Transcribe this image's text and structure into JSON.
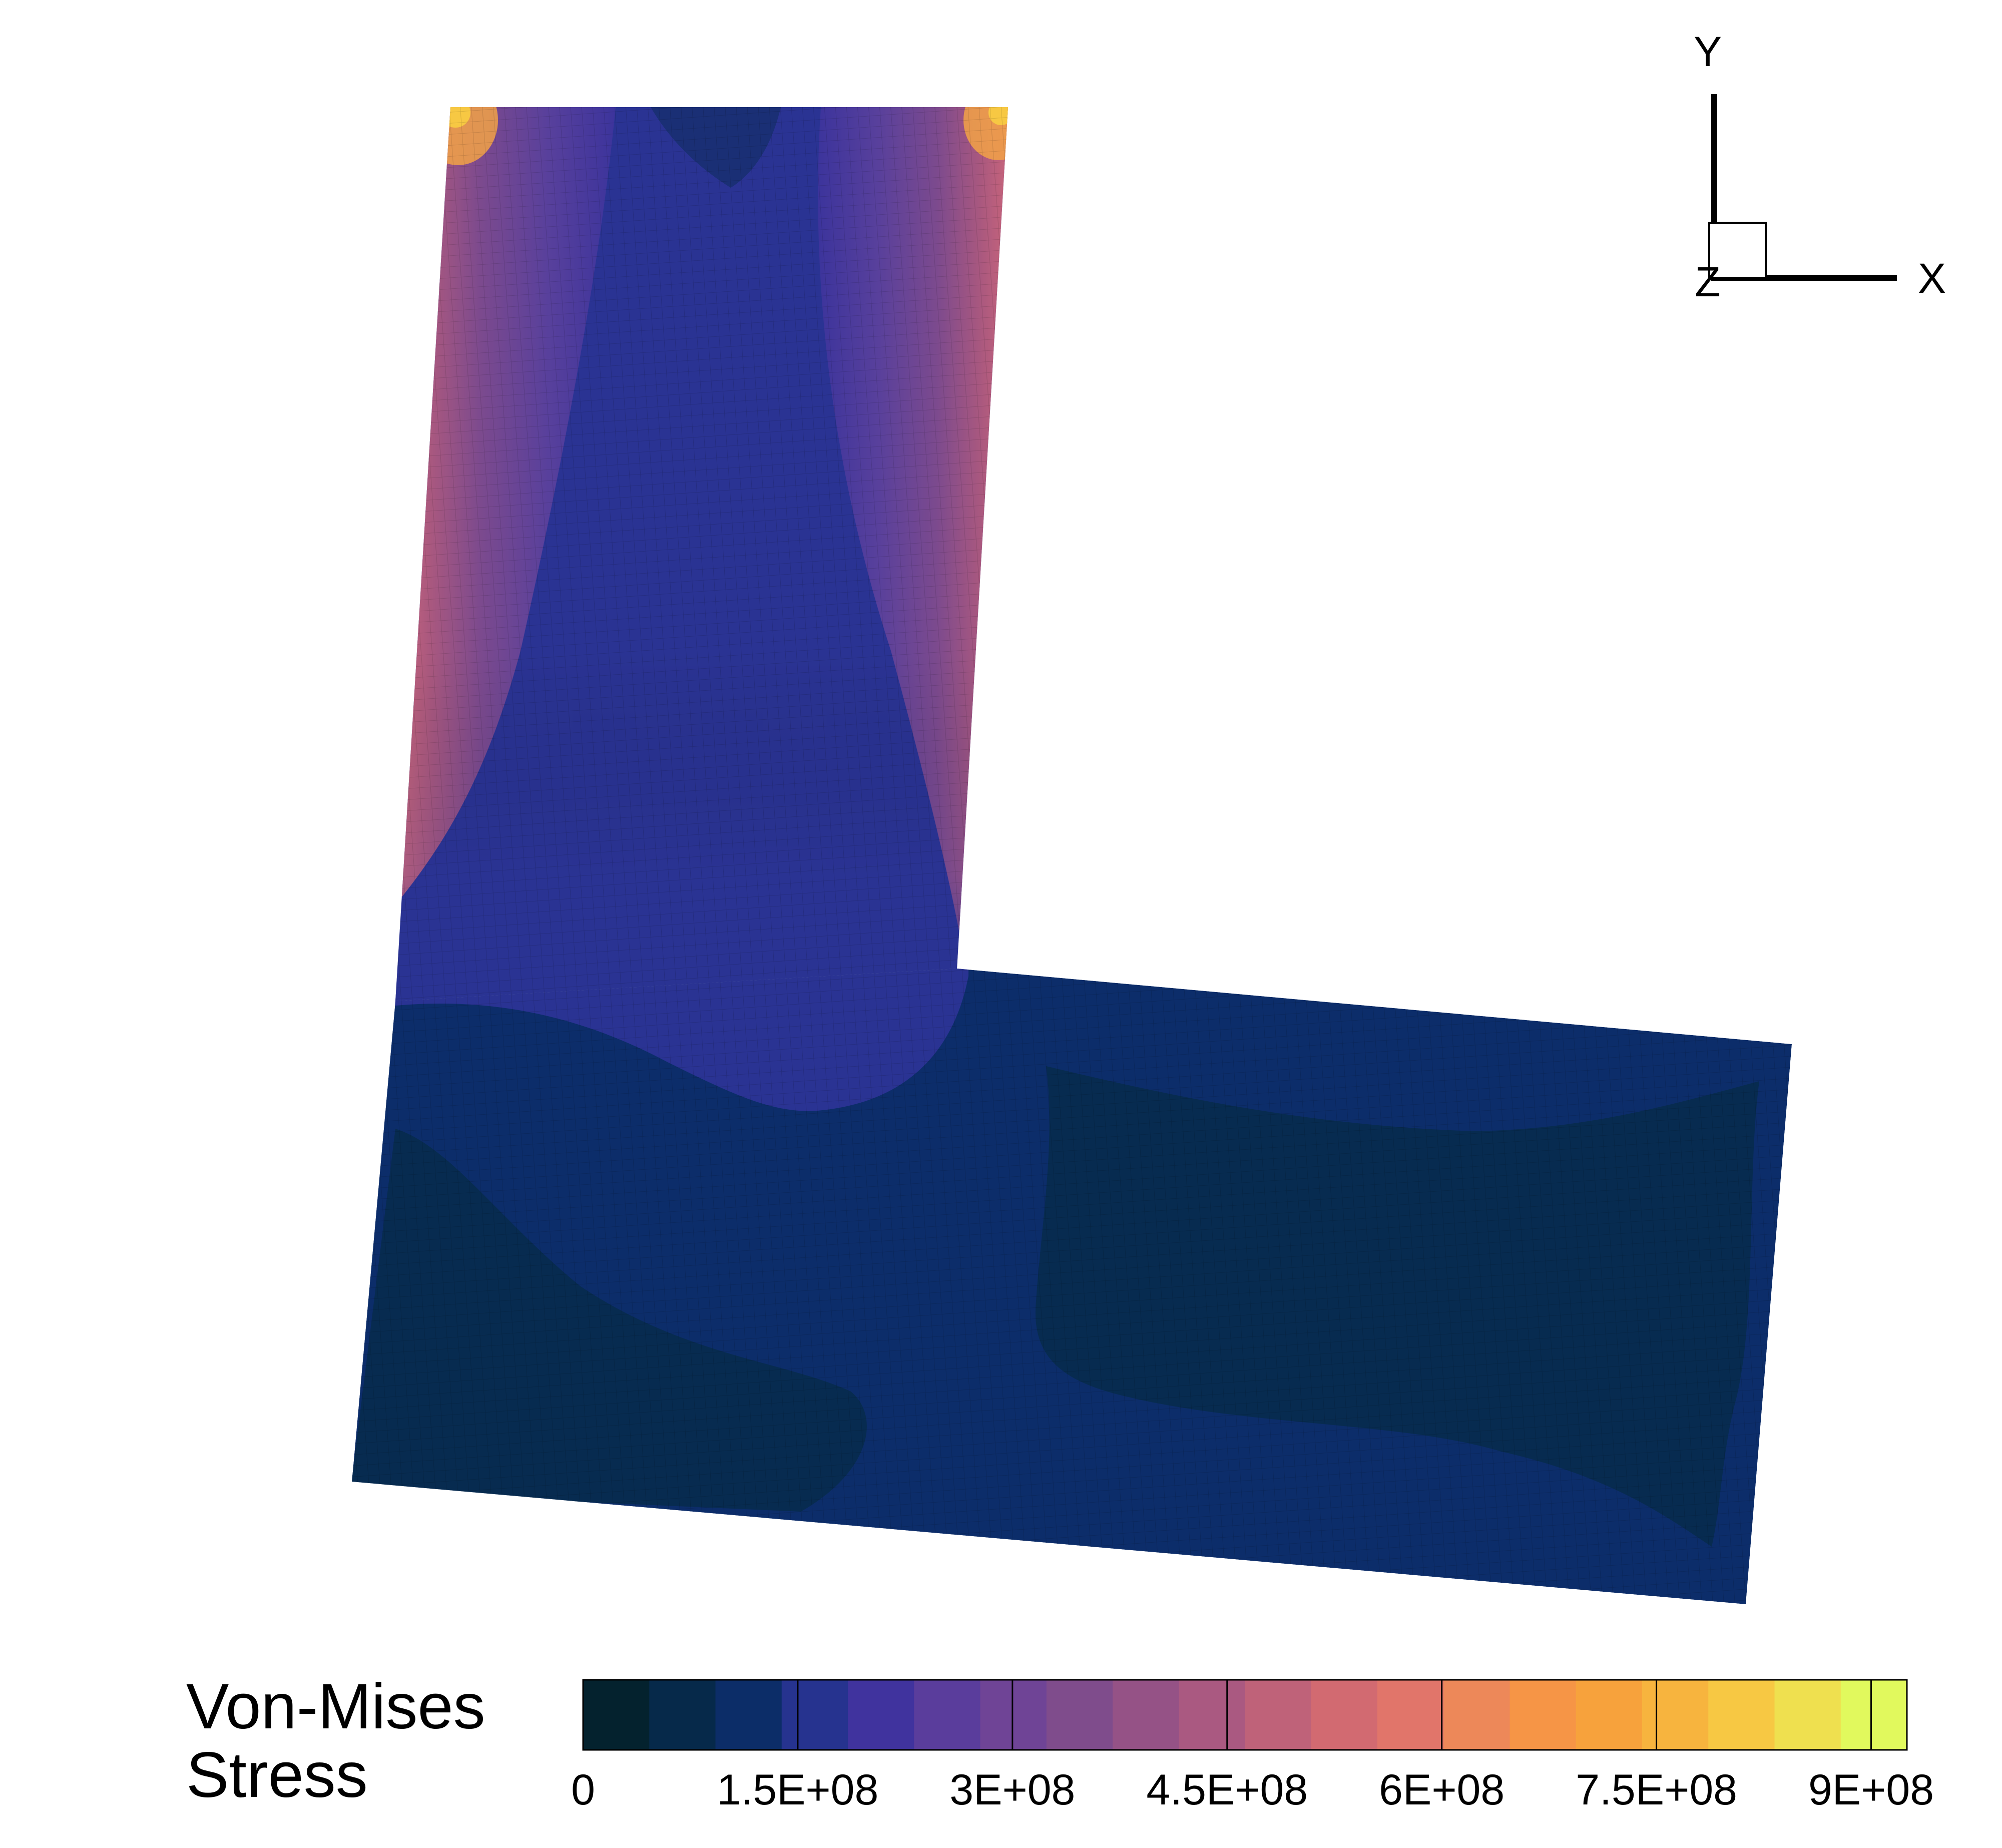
{
  "legend": {
    "title_line1": "Von-Mises",
    "title_line2": "Stress",
    "ticks": [
      "0",
      "1.5E+08",
      "3E+08",
      "4.5E+08",
      "6E+08",
      "7.5E+08",
      "9E+08"
    ],
    "tick_values": [
      0,
      150000000,
      300000000,
      450000000,
      600000000,
      750000000,
      900000000
    ],
    "range": [
      0,
      925000000
    ],
    "colors": [
      "#04222e",
      "#06294a",
      "#0c2d68",
      "#26338f",
      "#40339e",
      "#5a3d9c",
      "#6f4496",
      "#7f4c8c",
      "#955286",
      "#aa5981",
      "#bf6279",
      "#d26a71",
      "#e1756a",
      "#ed8859",
      "#f69546",
      "#f7a23c",
      "#f7b43e",
      "#f7c843",
      "#efe04f",
      "#e1f95d"
    ]
  },
  "axes": {
    "x_label": "X",
    "y_label": "Y",
    "z_label": "Z"
  },
  "colors": {
    "low": "#072b50",
    "mid_low": "#0c2d6a",
    "mid": "#2a3393",
    "violet": "#593d9e",
    "high": "#c05f76",
    "peak": "#f7b23e"
  }
}
